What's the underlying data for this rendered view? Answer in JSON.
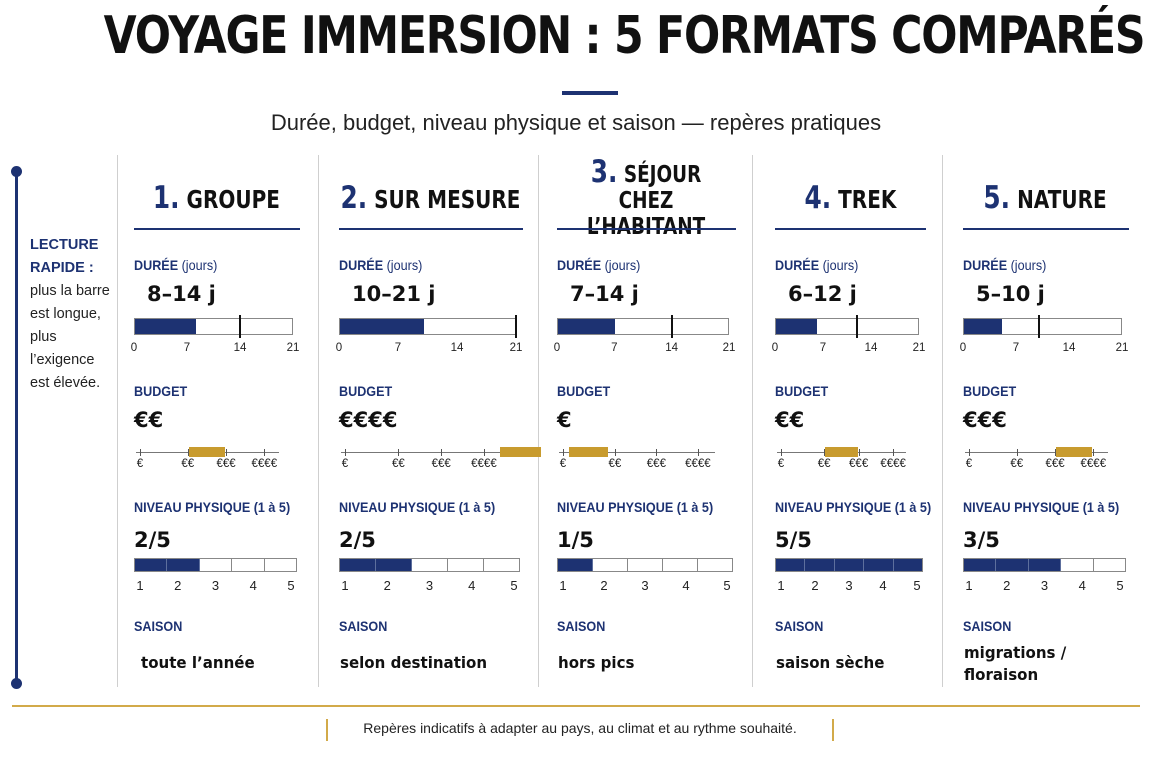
{
  "title": "VOYAGE IMMERSION : 5 FORMATS COMPARÉS",
  "subtitle": "Durée, budget, niveau physique et saison — repères pratiques",
  "sidebar": {
    "lead": "LECTURE RAPIDE :",
    "text": "plus la barre est longue, plus l’exigence est élevée."
  },
  "footnote": "Repères indicatifs à adapter au pays, au climat et au rythme souhaité.",
  "colors": {
    "navy": "#1d3272",
    "gold": "#c89b2e",
    "rule": "#d2aa4a"
  },
  "chart_data": {
    "type": "bar",
    "labels": {
      "duration": "DURÉE",
      "duration_unit": "(jours)",
      "budget": "BUDGET",
      "physical": "NIVEAU PHYSIQUE (1 à 5)",
      "season": "SAISON"
    },
    "duration_axis": {
      "min": 0,
      "max": 21,
      "ticks": [
        "0",
        "7",
        "14",
        "21"
      ]
    },
    "budget_axis": {
      "ticks": [
        "€",
        "€€",
        "€€€",
        "€€€€"
      ]
    },
    "physical_axis": {
      "ticks": [
        "1",
        "2",
        "3",
        "4",
        "5"
      ]
    },
    "formats": [
      {
        "num": "1.",
        "name": "GROUPE",
        "duration_text": "8–14 j",
        "duration_min": 8,
        "duration_max": 14,
        "budget_text": "€€",
        "budget_level": 2,
        "physical_text": "2/5",
        "physical": 2,
        "season": "toute l’année"
      },
      {
        "num": "2.",
        "name": "SUR MESURE",
        "duration_text": "10–21 j",
        "duration_min": 10,
        "duration_max": 21,
        "budget_text": "€€€€",
        "budget_level": 4,
        "physical_text": "2/5",
        "physical": 2,
        "season": "selon destination"
      },
      {
        "num": "3.",
        "name": "SÉJOUR CHEZ L’HABITANT",
        "duration_text": "7–14 j",
        "duration_min": 7,
        "duration_max": 14,
        "budget_text": "€",
        "budget_level": 1,
        "physical_text": "1/5",
        "physical": 1,
        "season": "hors pics"
      },
      {
        "num": "4.",
        "name": "TREK",
        "duration_text": "6–12 j",
        "duration_min": 6,
        "duration_max": 12,
        "budget_text": "€€",
        "budget_level": 2,
        "physical_text": "5/5",
        "physical": 5,
        "season": "saison sèche"
      },
      {
        "num": "5.",
        "name": "NATURE",
        "duration_text": "5–10 j",
        "duration_min": 5,
        "duration_max": 10,
        "budget_text": "€€€",
        "budget_level": 3,
        "physical_text": "3/5",
        "physical": 3,
        "season": "migrations / floraison"
      }
    ]
  }
}
